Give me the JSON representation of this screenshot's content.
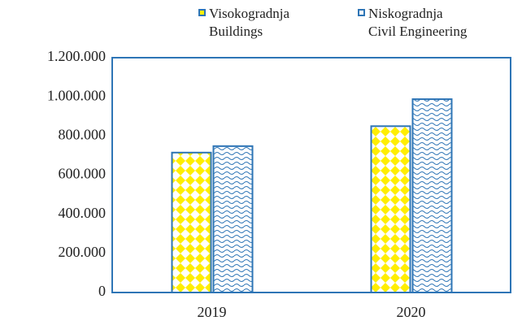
{
  "chart_data": {
    "type": "bar",
    "categories": [
      "2019",
      "2020"
    ],
    "series": [
      {
        "name": "Visokogradnja\nBuildings",
        "color": "#ffee00",
        "values": [
          715000,
          850000
        ]
      },
      {
        "name": "Niskogradnja\nCivil Engineering",
        "color": "#2e75b6",
        "values": [
          748000,
          988000
        ]
      }
    ],
    "edgecolor": "#2e75b6",
    "ylim": [
      0,
      1200000
    ],
    "yticks": [
      0,
      {
        "value": 200000,
        "label": "200.000"
      },
      {
        "value": 400000,
        "label": "400.000"
      },
      {
        "value": 600000,
        "label": "600.000"
      },
      {
        "value": 800000,
        "label": "800.000"
      },
      {
        "value": 1000000,
        "label": "1.000.000"
      },
      {
        "value": 1200000,
        "label": "1.200.000"
      }
    ],
    "grid": false,
    "legend": "top"
  }
}
